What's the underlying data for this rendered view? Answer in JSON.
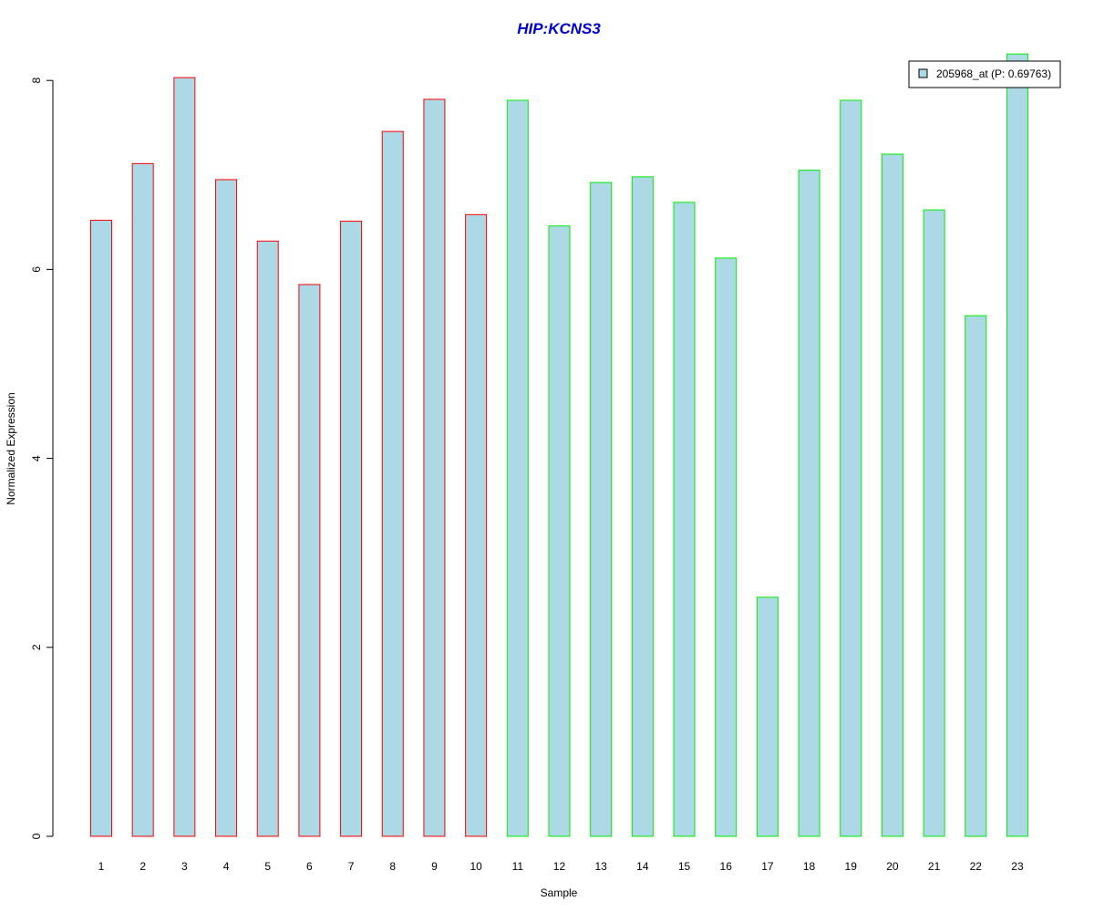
{
  "chart_data": {
    "type": "bar",
    "title": "HIP:KCNS3",
    "xlabel": "Sample",
    "ylabel": "Normalized Expression",
    "categories": [
      "1",
      "2",
      "3",
      "4",
      "5",
      "6",
      "7",
      "8",
      "9",
      "10",
      "11",
      "12",
      "13",
      "14",
      "15",
      "16",
      "17",
      "18",
      "19",
      "20",
      "21",
      "22",
      "23"
    ],
    "series": [
      {
        "name": "205968_at (P: 0.69763)",
        "values": [
          6.52,
          7.12,
          8.03,
          6.95,
          6.3,
          5.84,
          6.51,
          7.46,
          7.8,
          6.58,
          7.79,
          6.46,
          6.92,
          6.98,
          6.71,
          6.12,
          2.53,
          7.05,
          7.79,
          7.22,
          6.63,
          5.51,
          8.28
        ]
      }
    ],
    "group_border_colors": [
      "#ff0000",
      "#ff0000",
      "#ff0000",
      "#ff0000",
      "#ff0000",
      "#ff0000",
      "#ff0000",
      "#ff0000",
      "#ff0000",
      "#ff0000",
      "#00ee00",
      "#00ee00",
      "#00ee00",
      "#00ee00",
      "#00ee00",
      "#00ee00",
      "#00ee00",
      "#00ee00",
      "#00ee00",
      "#00ee00",
      "#00ee00",
      "#00ee00",
      "#00ee00"
    ],
    "yticks": [
      0,
      2,
      4,
      6,
      8
    ],
    "ylim": [
      0,
      8.3
    ],
    "grid": false,
    "legend_position": "top-right",
    "colors": {
      "bar_fill": "#add8e6",
      "title": "#0000cc",
      "axis": "#000000"
    }
  }
}
